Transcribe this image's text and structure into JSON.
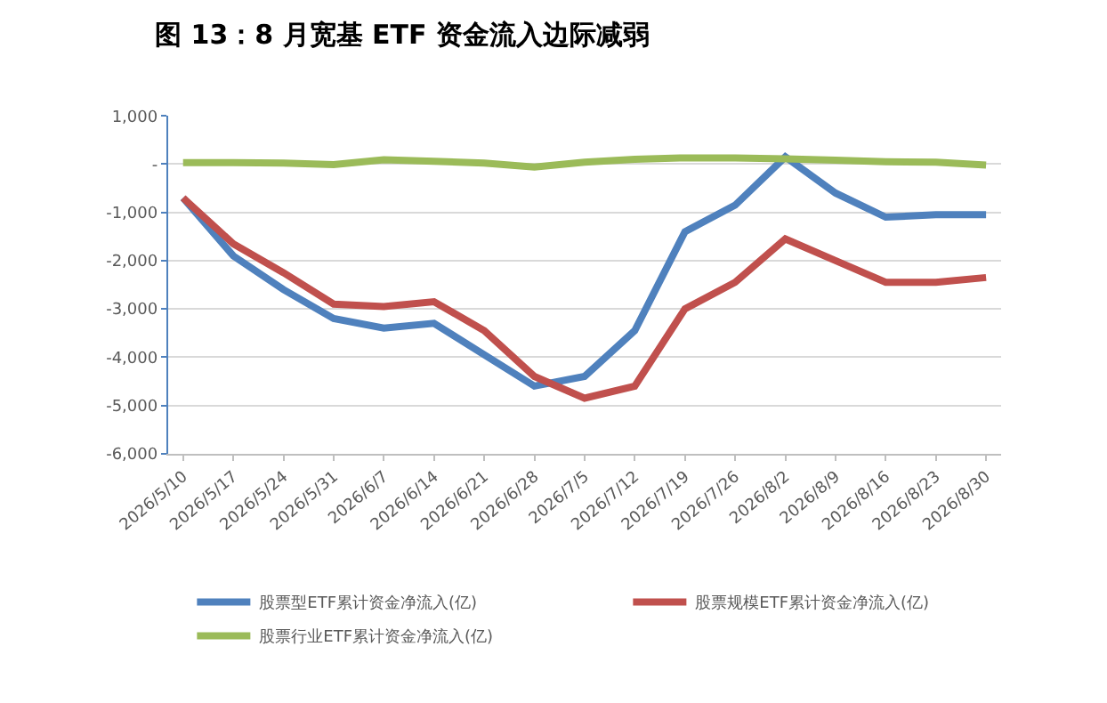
{
  "chart_data": {
    "type": "line",
    "title": "图 13：8 月宽基 ETF 资金流入边际减弱",
    "categories": [
      "2026/5/10",
      "2026/5/17",
      "2026/5/24",
      "2026/5/31",
      "2026/6/7",
      "2026/6/14",
      "2026/6/21",
      "2026/6/28",
      "2026/7/5",
      "2026/7/12",
      "2026/7/19",
      "2026/7/26",
      "2026/8/2",
      "2026/8/9",
      "2026/8/16",
      "2026/8/23",
      "2026/8/30"
    ],
    "series": [
      {
        "name": "股票型ETF累计资金净流入(亿)",
        "color": "#4f81bd",
        "values": [
          -700,
          -1900,
          -2600,
          -3200,
          -3400,
          -3300,
          -3950,
          -4600,
          -4400,
          -3450,
          -1400,
          -850,
          150,
          -600,
          -1100,
          -1050,
          -1050
        ]
      },
      {
        "name": "股票规模ETF累计资金净流入(亿)",
        "color": "#c0504d",
        "values": [
          -700,
          -1650,
          -2250,
          -2900,
          -2950,
          -2850,
          -3450,
          -4400,
          -4850,
          -4600,
          -3000,
          -2450,
          -1550,
          -2000,
          -2450,
          -2450,
          -2350
        ]
      },
      {
        "name": "股票行业ETF累计资金净流入(亿)",
        "color": "#9bbb59",
        "values": [
          30,
          30,
          20,
          -10,
          90,
          60,
          20,
          -60,
          40,
          100,
          130,
          130,
          110,
          80,
          50,
          40,
          -20
        ]
      }
    ],
    "ylim": [
      -6000,
      1000
    ],
    "yticks": [
      {
        "value": -6000,
        "label": "-6,000"
      },
      {
        "value": -5000,
        "label": "-5,000"
      },
      {
        "value": -4000,
        "label": "-4,000"
      },
      {
        "value": -3000,
        "label": "-3,000"
      },
      {
        "value": -2000,
        "label": "-2,000"
      },
      {
        "value": -1000,
        "label": "-1,000"
      },
      {
        "value": 0,
        "label": "-"
      },
      {
        "value": 1000,
        "label": "1,000"
      }
    ],
    "grid": "y",
    "legend": "bottom",
    "marker": "none",
    "line_style": "solid"
  }
}
